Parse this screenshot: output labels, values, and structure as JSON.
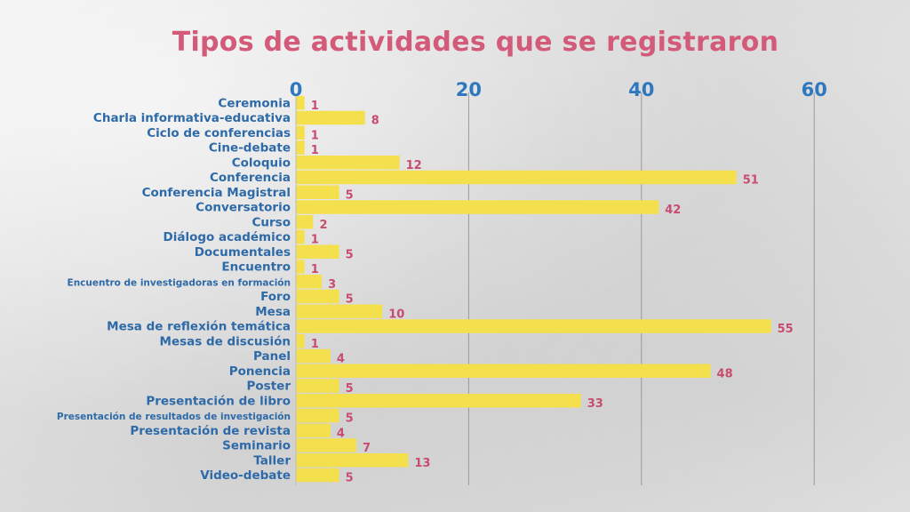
{
  "chart_data": {
    "type": "bar",
    "orientation": "horizontal",
    "title": "Tipos de actividades que se registraron",
    "xlim": [
      0,
      60
    ],
    "xticks": [
      0,
      20,
      40,
      60
    ],
    "xaxis_position": "top",
    "grid": true,
    "categories": [
      "Ceremonia",
      "Charla informativa-educativa",
      "Ciclo de conferencias",
      "Cine-debate",
      "Coloquio",
      "Conferencia",
      "Conferencia Magistral",
      "Conversatorio",
      "Curso",
      "Diálogo académico",
      "Documentales",
      "Encuentro",
      "Encuentro de investigadoras en formación",
      "Foro",
      "Mesa",
      "Mesa de reflexión temática",
      "Mesas de discusión",
      "Panel",
      "Ponencia",
      "Poster",
      "Presentación de libro",
      "Presentación de resultados de investigación",
      "Presentación de revista",
      "Seminario",
      "Taller",
      "Video-debate"
    ],
    "values": [
      1,
      8,
      1,
      1,
      12,
      51,
      5,
      42,
      2,
      1,
      5,
      1,
      3,
      5,
      10,
      55,
      1,
      4,
      48,
      5,
      33,
      5,
      4,
      7,
      13,
      5
    ],
    "colors": {
      "bar": "#f4e04d",
      "title": "#d35a78",
      "tick_labels": "#2e78bf",
      "category_labels": "#2e6aa8",
      "value_labels": "#c84c6e",
      "grid": "#9a9a9a"
    }
  }
}
